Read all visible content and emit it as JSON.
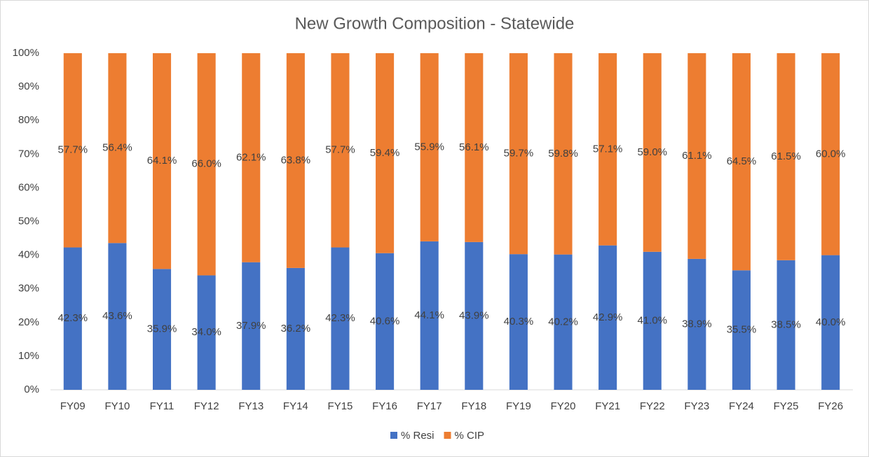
{
  "chart_data": {
    "type": "stacked_bar",
    "title": "New Growth Composition - Statewide",
    "categories": [
      "FY09",
      "FY10",
      "FY11",
      "FY12",
      "FY13",
      "FY14",
      "FY15",
      "FY16",
      "FY17",
      "FY18",
      "FY19",
      "FY20",
      "FY21",
      "FY22",
      "FY23",
      "FY24",
      "FY25",
      "FY26"
    ],
    "series": [
      {
        "name": "% Resi",
        "color": "#4472c4",
        "values": [
          42.3,
          43.6,
          35.9,
          34.0,
          37.9,
          36.2,
          42.3,
          40.6,
          44.1,
          43.9,
          40.3,
          40.2,
          42.9,
          41.0,
          38.9,
          35.5,
          38.5,
          40.0
        ],
        "value_labels": [
          "42.3%",
          "43.6%",
          "35.9%",
          "34.0%",
          "37.9%",
          "36.2%",
          "42.3%",
          "40.6%",
          "44.1%",
          "43.9%",
          "40.3%",
          "40.2%",
          "42.9%",
          "41.0%",
          "38.9%",
          "35.5%",
          "38.5%",
          "40.0%"
        ]
      },
      {
        "name": "% CIP",
        "color": "#ed7d31",
        "values": [
          57.7,
          56.4,
          64.1,
          66.0,
          62.1,
          63.8,
          57.7,
          59.4,
          55.9,
          56.1,
          59.7,
          59.8,
          57.1,
          59.0,
          61.1,
          64.5,
          61.5,
          60.0
        ],
        "value_labels": [
          "57.7%",
          "56.4%",
          "64.1%",
          "66.0%",
          "62.1%",
          "63.8%",
          "57.7%",
          "59.4%",
          "55.9%",
          "56.1%",
          "59.7%",
          "59.8%",
          "57.1%",
          "59.0%",
          "61.1%",
          "64.5%",
          "61.5%",
          "60.0%"
        ]
      }
    ],
    "ylim": [
      0,
      100
    ],
    "yticks": [
      {
        "value": 0,
        "label": "0%"
      },
      {
        "value": 10,
        "label": "10%"
      },
      {
        "value": 20,
        "label": "20%"
      },
      {
        "value": 30,
        "label": "30%"
      },
      {
        "value": 40,
        "label": "40%"
      },
      {
        "value": 50,
        "label": "50%"
      },
      {
        "value": 60,
        "label": "60%"
      },
      {
        "value": 70,
        "label": "70%"
      },
      {
        "value": 80,
        "label": "80%"
      },
      {
        "value": 90,
        "label": "90%"
      },
      {
        "value": 100,
        "label": "100%"
      }
    ],
    "grid": false,
    "legend": "bottom"
  }
}
